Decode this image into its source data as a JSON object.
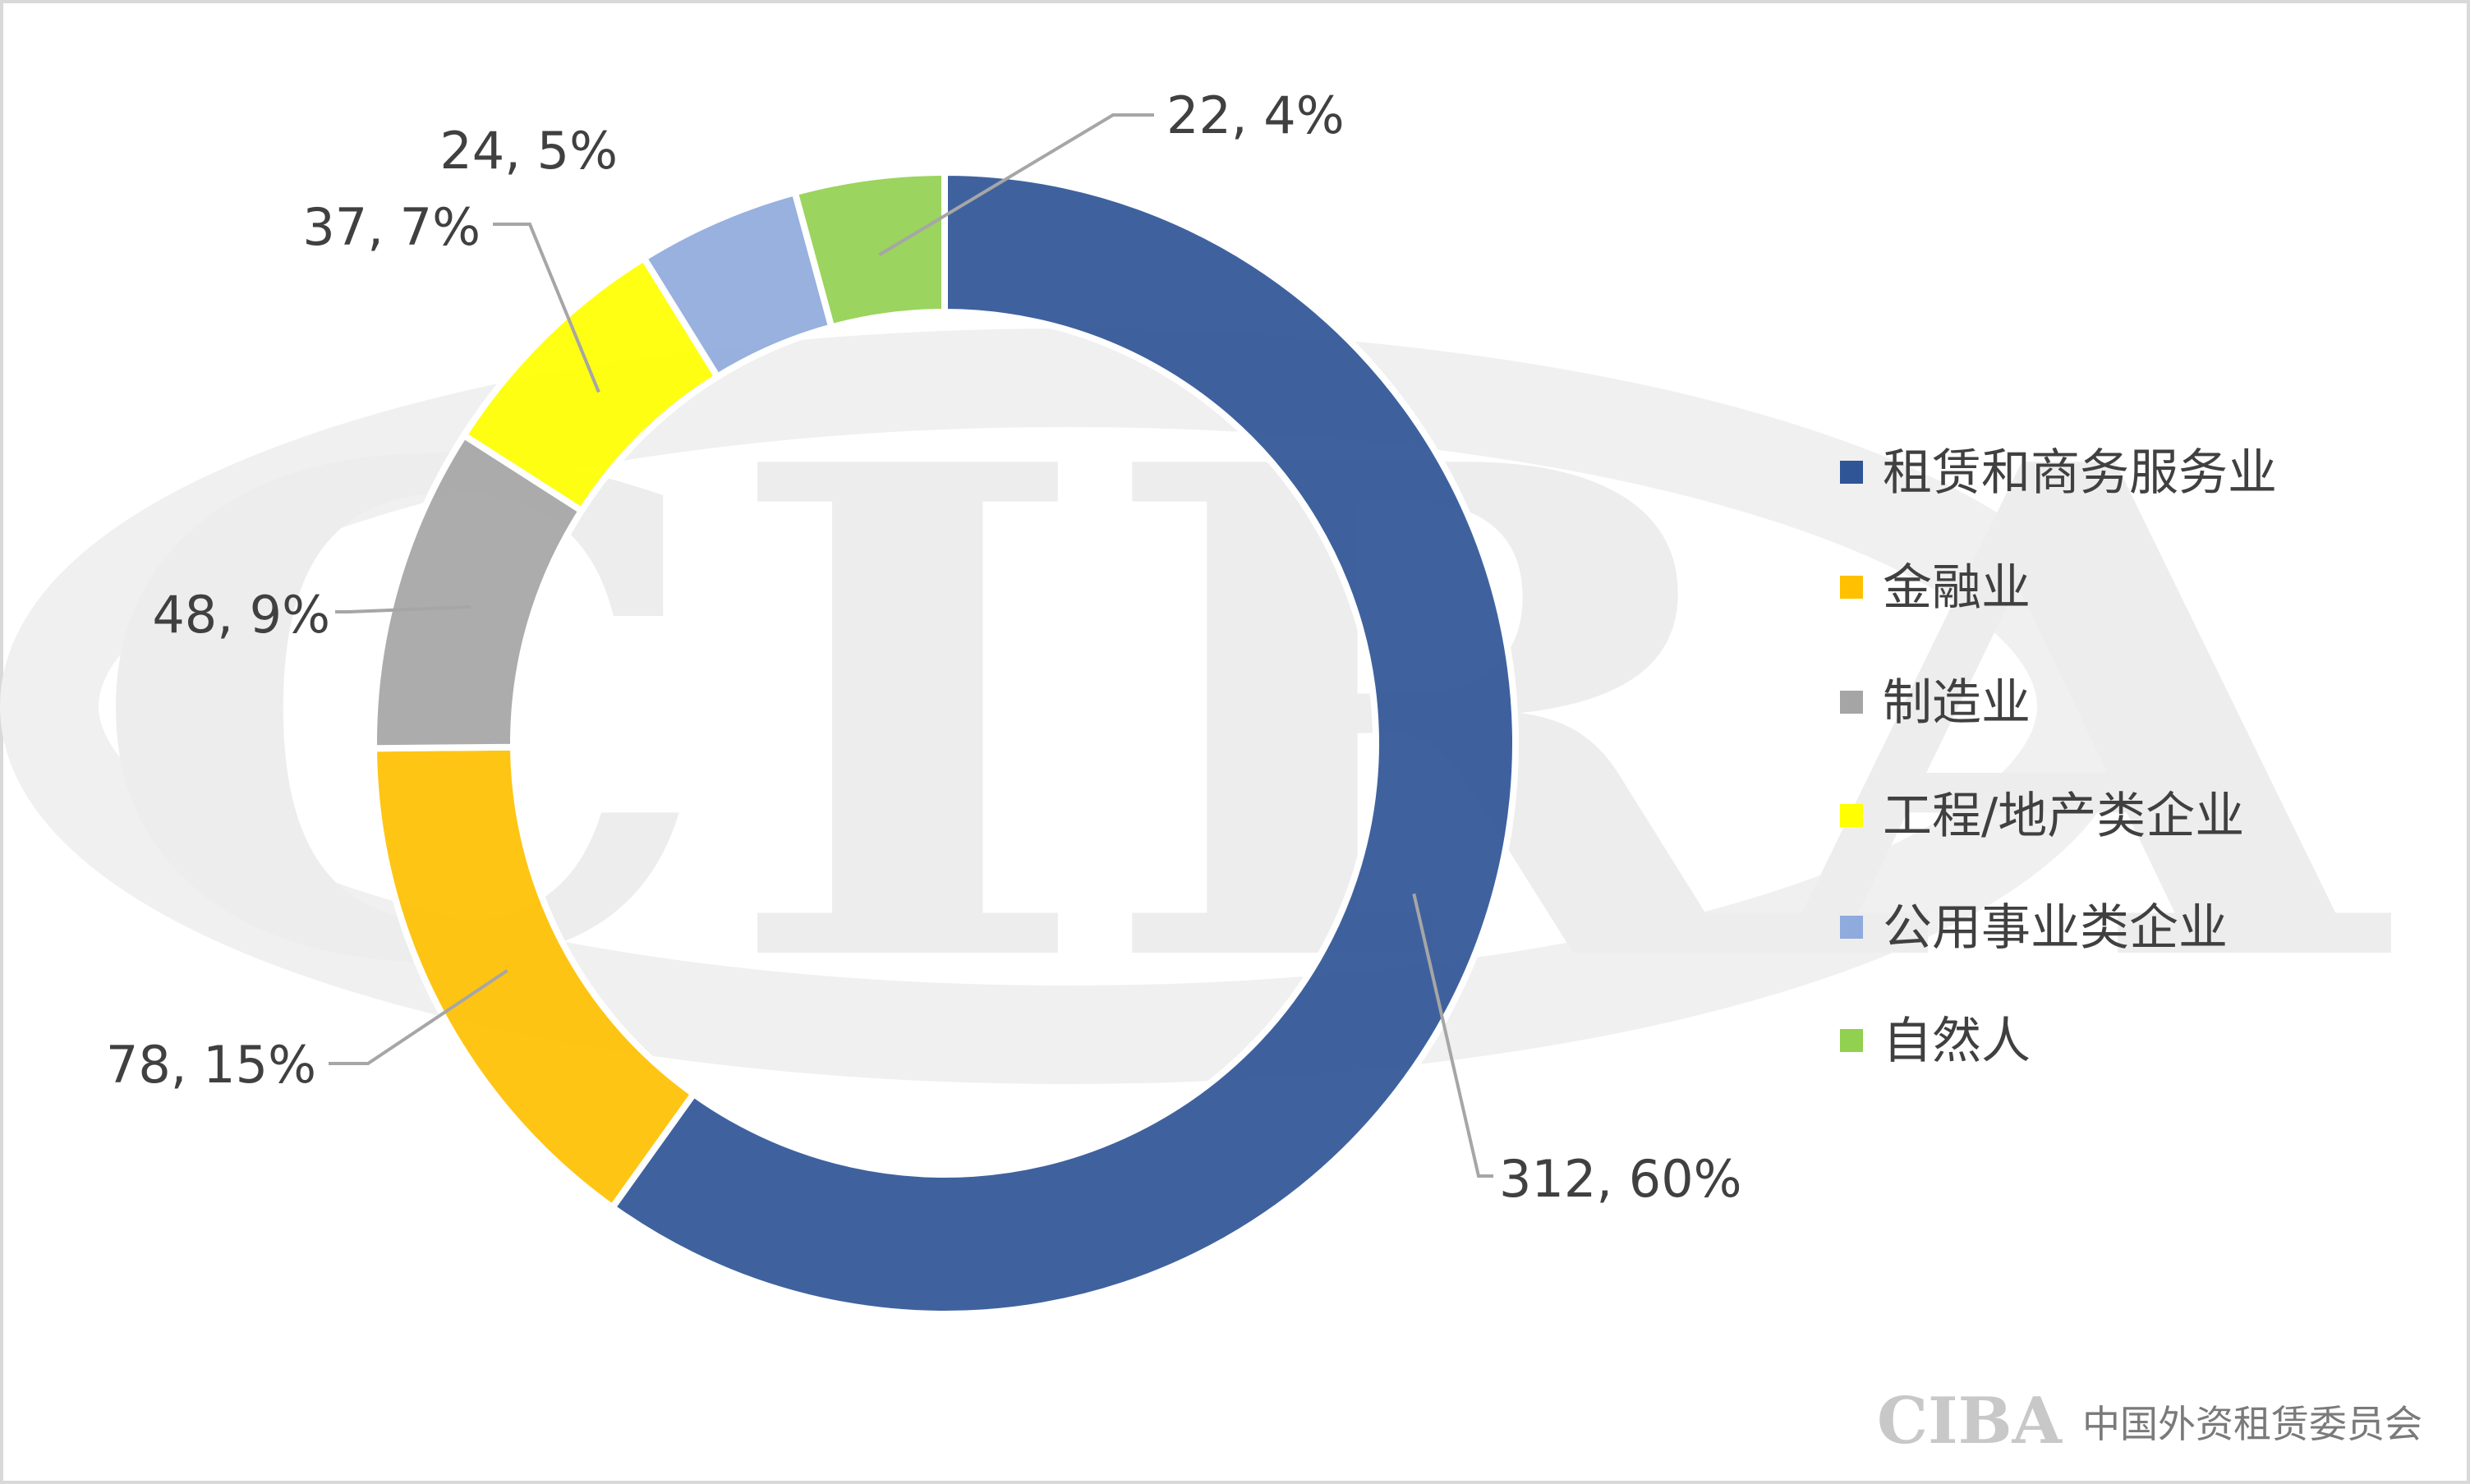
{
  "chart_data": {
    "type": "pie",
    "variant": "doughnut",
    "categories": [
      "租赁和商务服务业",
      "金融业",
      "制造业",
      "工程/地产类企业",
      "公用事业类企业",
      "自然人"
    ],
    "values": [
      312,
      78,
      48,
      37,
      24,
      22
    ],
    "percents": [
      60,
      15,
      9,
      7,
      5,
      4
    ],
    "data_labels": [
      "312, 60%",
      "78, 15%",
      "48, 9%",
      "37, 7%",
      "24, 5%",
      "22, 4%"
    ],
    "colors": [
      "#2F5597",
      "#FFC000",
      "#A5A5A5",
      "#FFFF00",
      "#8FAADC",
      "#92D050"
    ],
    "legend_position": "right"
  },
  "watermark": {
    "text": "CIRA"
  },
  "footer": {
    "logo_text": "CIBA",
    "org_name": "中国外资租赁委员会"
  }
}
